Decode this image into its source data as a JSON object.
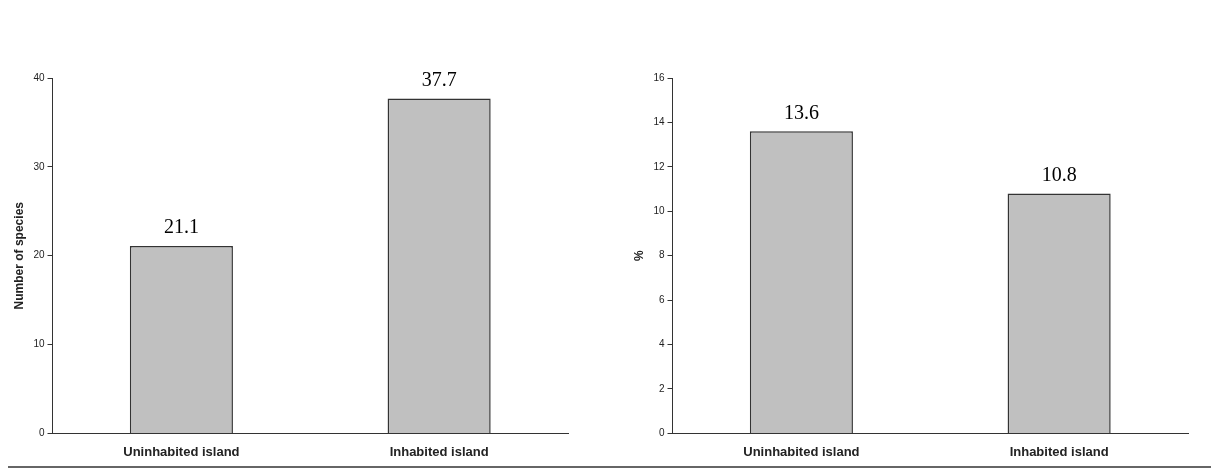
{
  "chart_data": [
    {
      "type": "bar",
      "categories": [
        "Uninhabited island",
        "Inhabited island"
      ],
      "values": [
        21.1,
        37.7
      ],
      "color": "#c0c0c0",
      "ylabel": "Number of species",
      "ylim": [
        0,
        40
      ],
      "yticks": [
        0,
        10,
        20,
        30,
        40
      ],
      "grid": false,
      "legend": false,
      "data_labels": true
    },
    {
      "type": "bar",
      "categories": [
        "Uninhabited island",
        "Inhabited island"
      ],
      "values": [
        13.6,
        10.8
      ],
      "color": "#c0c0c0",
      "ylabel": "%",
      "ylim": [
        0,
        16
      ],
      "yticks": [
        0,
        2,
        4,
        6,
        8,
        10,
        12,
        14,
        16
      ],
      "grid": false,
      "legend": false,
      "data_labels": true
    }
  ]
}
